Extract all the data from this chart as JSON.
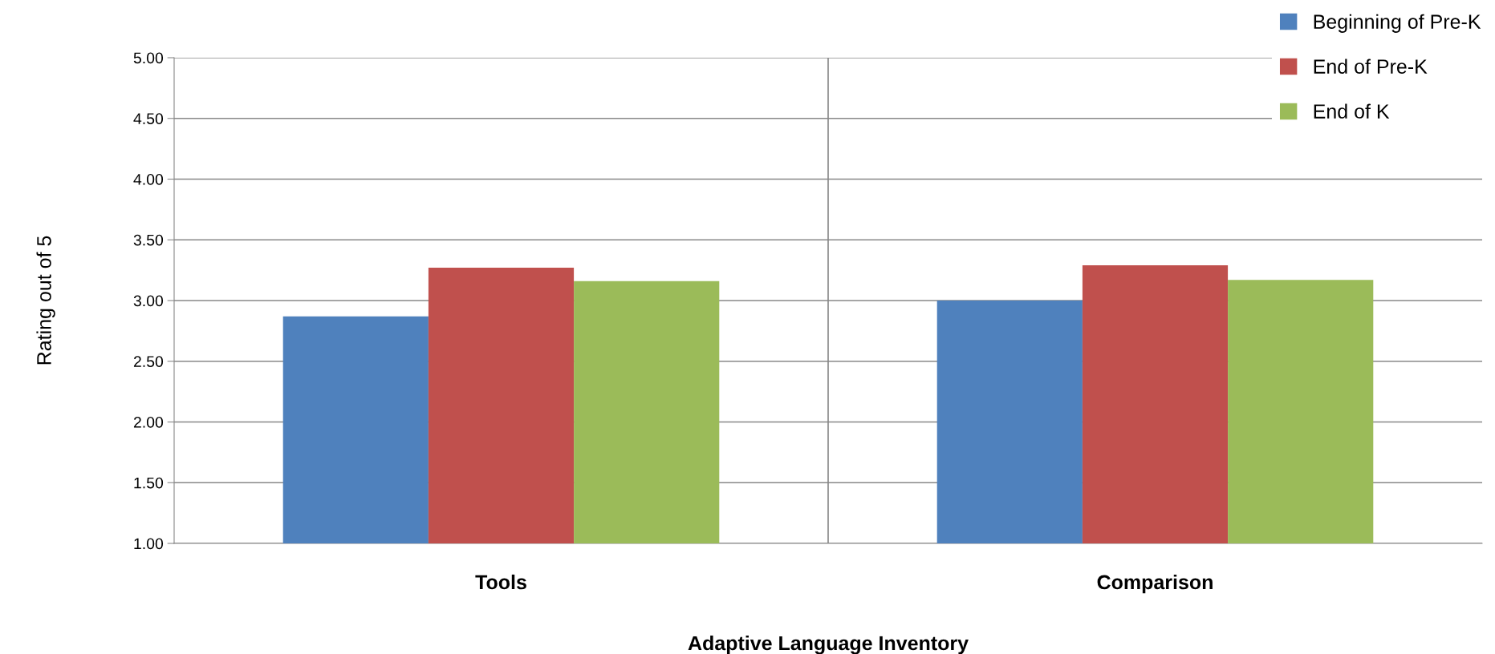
{
  "chart_data": {
    "type": "bar",
    "xlabel": "Adaptive Language Inventory",
    "ylabel": "Rating out of 5",
    "categories": [
      "Tools",
      "Comparison"
    ],
    "series": [
      {
        "name": "Beginning of Pre-K",
        "color": "#4f81bd",
        "values": [
          2.87,
          3.0
        ]
      },
      {
        "name": "End of Pre-K",
        "color": "#c0504d",
        "values": [
          3.27,
          3.29
        ]
      },
      {
        "name": "End of K",
        "color": "#9bbb59",
        "values": [
          3.16,
          3.17
        ]
      }
    ],
    "ylim": [
      1,
      5
    ],
    "yticks": [
      {
        "value": 1,
        "label": "1.00"
      },
      {
        "value": 1.5,
        "label": "1.50"
      },
      {
        "value": 2,
        "label": "2.00"
      },
      {
        "value": 2.5,
        "label": "2.50"
      },
      {
        "value": 3,
        "label": "3.00"
      },
      {
        "value": 3.5,
        "label": "3.50"
      },
      {
        "value": 4,
        "label": "4.00"
      },
      {
        "value": 4.5,
        "label": "4.50"
      },
      {
        "value": 5,
        "label": "5.00"
      }
    ],
    "grid": "y",
    "legend": "top right"
  }
}
